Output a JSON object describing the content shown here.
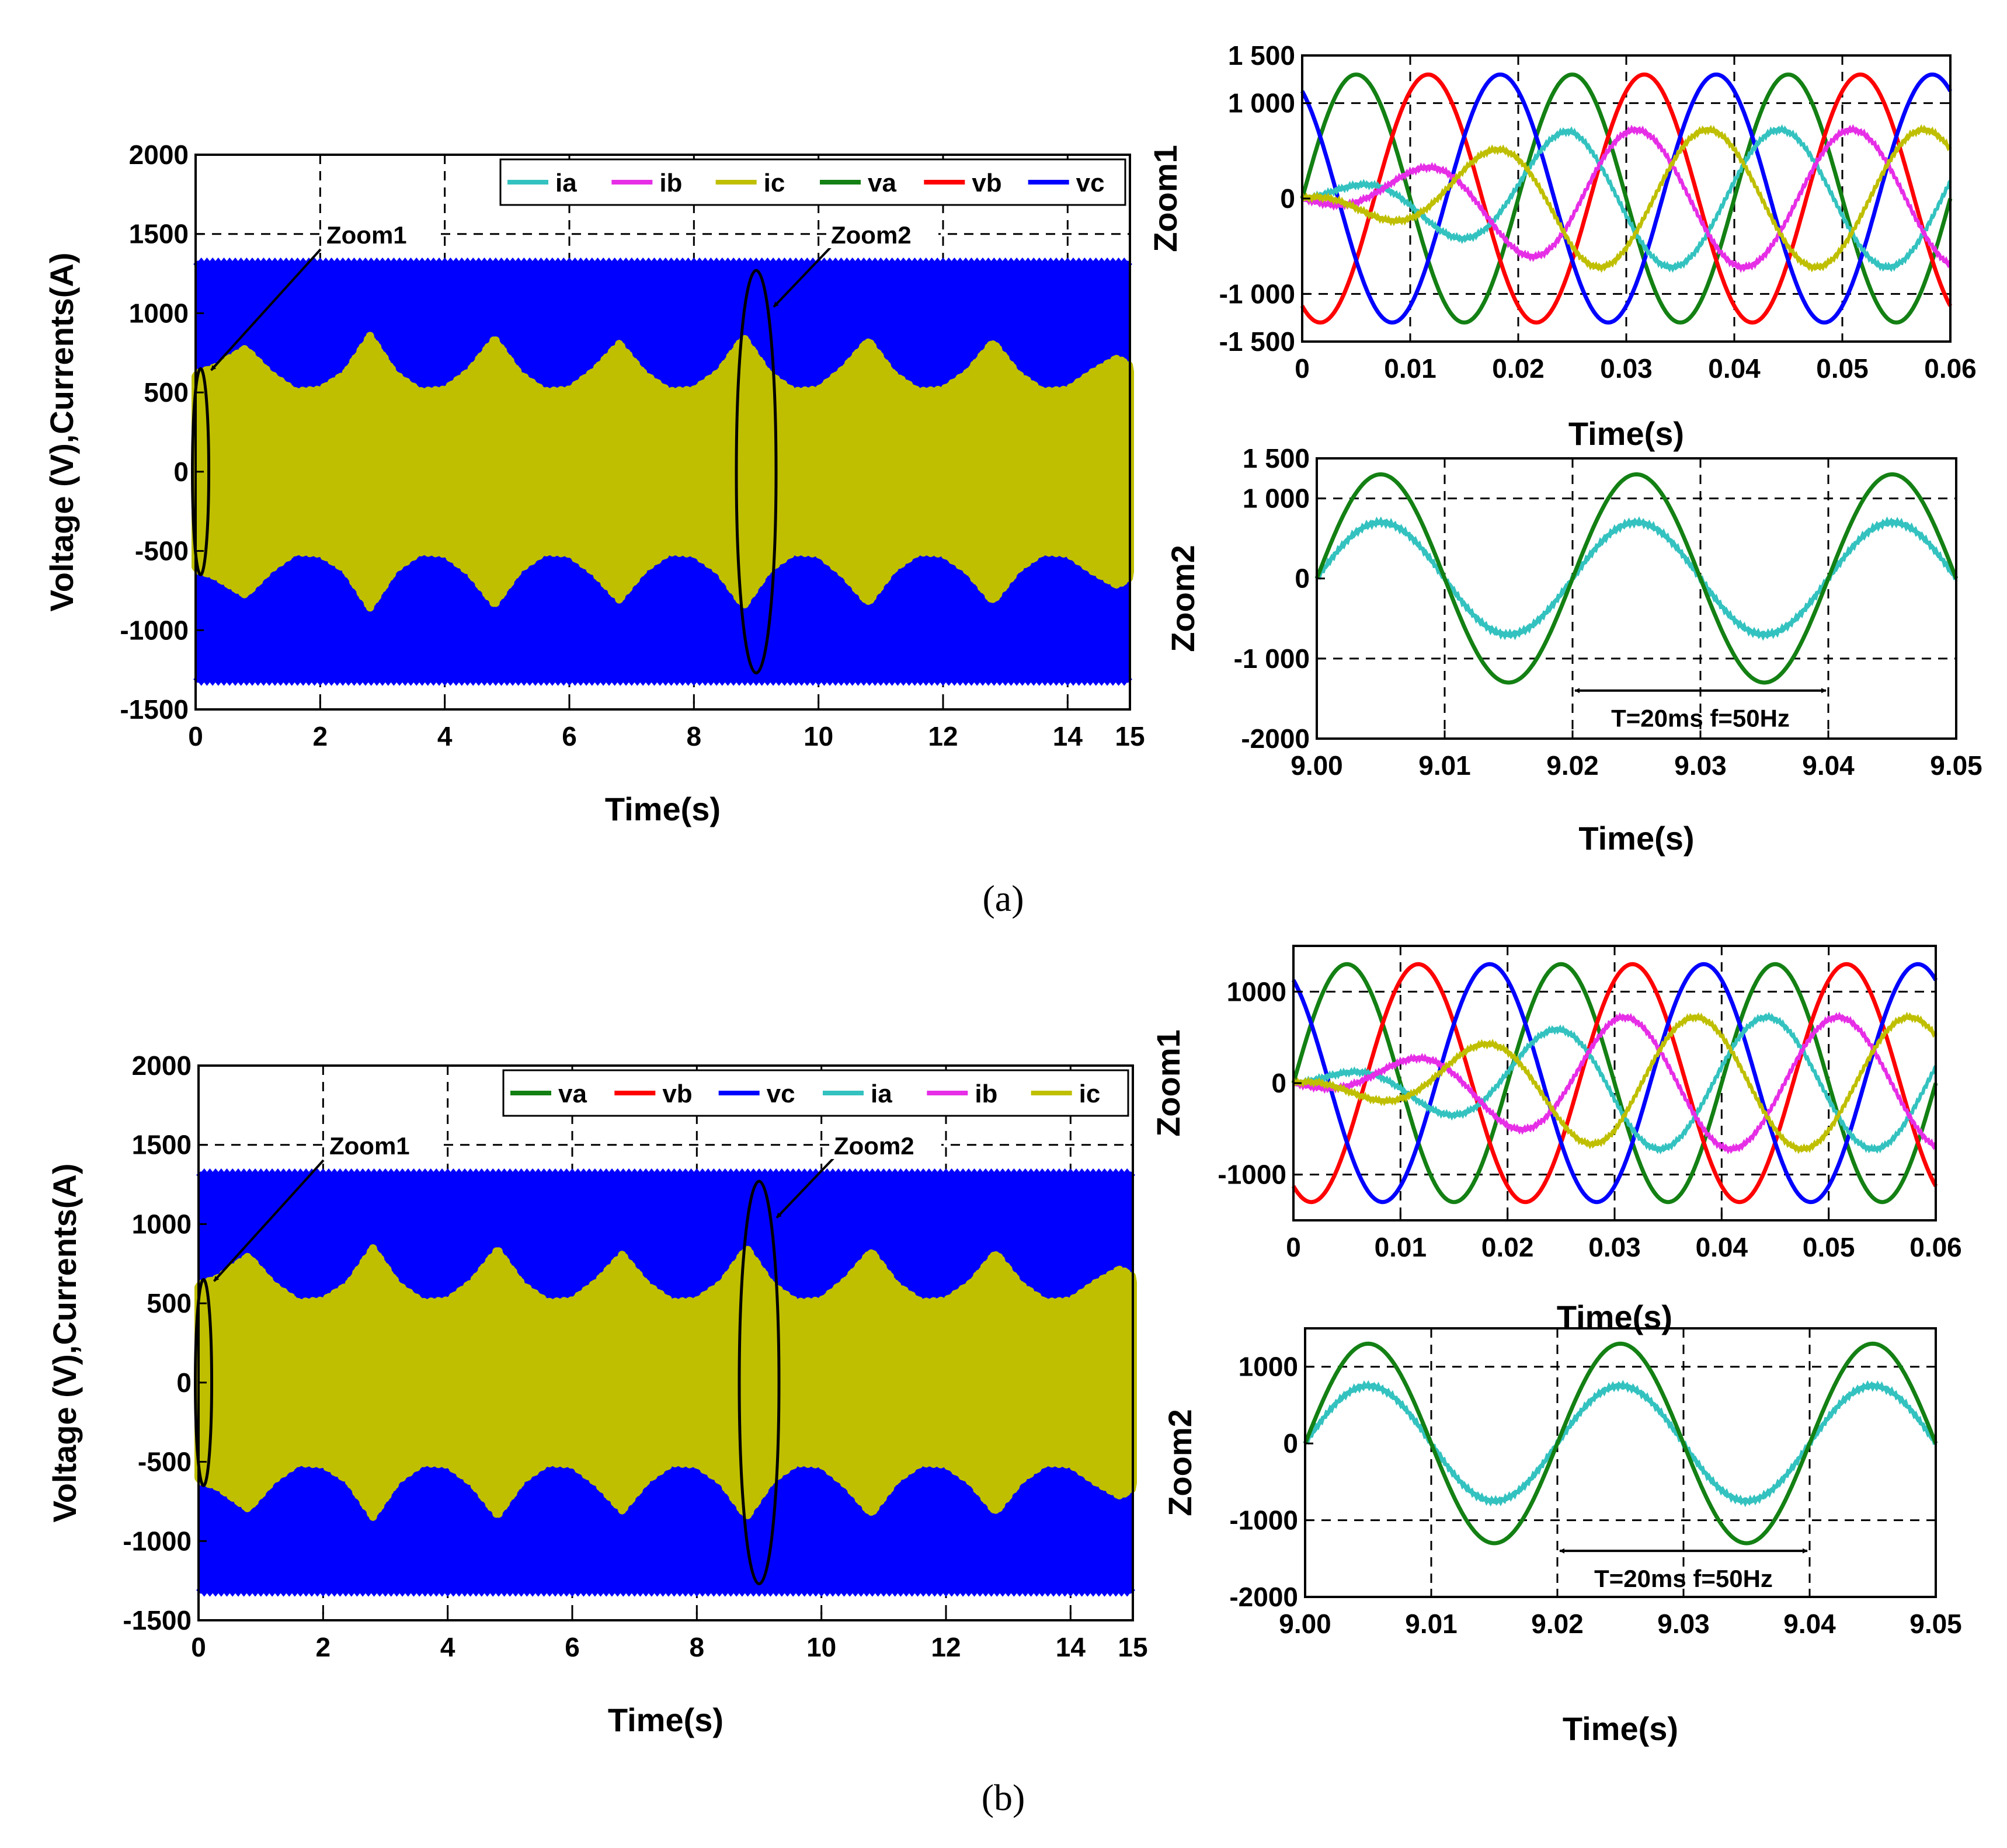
{
  "colors": {
    "va": "#138013",
    "vb": "#ff0000",
    "vc": "#0000ff",
    "ia": "#33c2bf",
    "ib": "#e62ee6",
    "ic": "#bfbf00"
  },
  "panels": [
    {
      "caption": "(a)",
      "main": {
        "chart_data": {
          "type": "line",
          "title": "",
          "xlabel": "Time(s)",
          "ylabel": "Voltage (V),Currents(A)",
          "xlim": [
            0,
            15
          ],
          "ylim": [
            -1500,
            2000
          ],
          "xticks": [
            "0",
            "2",
            "4",
            "6",
            "8",
            "10",
            "12",
            "14",
            "15"
          ],
          "yticks": [
            "2000",
            "1500",
            "1000",
            "500",
            "0",
            "-500",
            "-1000",
            "-1500"
          ],
          "legend": [
            "ia",
            "ib",
            "ic",
            "va",
            "vb",
            "vc"
          ],
          "legend_position": "top-right",
          "voltage_amplitude": 1300,
          "current_envelope": {
            "t": [
              0,
              0.3,
              0.8,
              1.2,
              1.6,
              2.0,
              2.4,
              2.8,
              3.2,
              3.6,
              4.0,
              4.4,
              4.8,
              5.2,
              5.6,
              6.0,
              6.4,
              6.8,
              7.2,
              7.6,
              8.0,
              8.4,
              8.8,
              9.2,
              9.6,
              10.0,
              10.4,
              10.8,
              11.2,
              11.6,
              12.0,
              12.4,
              12.8,
              13.2,
              13.6,
              14.0,
              14.4,
              14.8,
              15.0
            ],
            "amplitude": [
              600,
              640,
              760,
              600,
              490,
              500,
              600,
              840,
              600,
              490,
              500,
              620,
              820,
              600,
              490,
              500,
              620,
              790,
              600,
              490,
              500,
              610,
              830,
              600,
              490,
              500,
              630,
              810,
              600,
              490,
              500,
              610,
              800,
              600,
              490,
              500,
              610,
              700,
              650
            ]
          },
          "annotations": [
            "Zoom1",
            "Zoom2"
          ]
        }
      },
      "zoom1": {
        "chart_data": {
          "type": "line",
          "xlabel": "Time(s)",
          "ylabel": "Zoom1",
          "xlim": [
            0,
            0.06
          ],
          "ylim": [
            -1500,
            1500
          ],
          "xticks": [
            "0",
            "0.01",
            "0.02",
            "0.03",
            "0.04",
            "0.05",
            "0.06"
          ],
          "yticks": [
            "1 500",
            "1 000",
            "0",
            "-1 000",
            "-1 500"
          ],
          "frequency_hz": 50,
          "voltage_amplitude": 1300,
          "current_amplitude": 720,
          "current_rise_time_s": 0.025,
          "series": [
            "va",
            "vb",
            "vc",
            "ia",
            "ib",
            "ic"
          ]
        }
      },
      "zoom2": {
        "chart_data": {
          "type": "line",
          "xlabel": "Time(s)",
          "ylabel": "Zoom2",
          "xlim": [
            9.0,
            9.05
          ],
          "ylim": [
            -2000,
            1500
          ],
          "xticks": [
            "9.00",
            "9.01",
            "9.02",
            "9.03",
            "9.04",
            "9.05"
          ],
          "yticks": [
            "1 500",
            "1 000",
            "0",
            "-1 000",
            "-2000"
          ],
          "series": [
            {
              "name": "va",
              "amplitude": 1300
            },
            {
              "name": "ia",
              "amplitude": 700
            }
          ],
          "period_annotation": "T=20ms  f=50Hz",
          "period_span": [
            9.02,
            9.04
          ]
        }
      }
    },
    {
      "caption": "(b)",
      "main": {
        "chart_data": {
          "type": "line",
          "title": "",
          "xlabel": "Time(s)",
          "ylabel": "Voltage (V),Currents(A)",
          "xlim": [
            0,
            15
          ],
          "ylim": [
            -1500,
            2000
          ],
          "xticks": [
            "0",
            "2",
            "4",
            "6",
            "8",
            "10",
            "12",
            "14",
            "15"
          ],
          "yticks": [
            "2000",
            "1500",
            "1000",
            "500",
            "0",
            "-500",
            "-1000",
            "-1500"
          ],
          "legend": [
            "va",
            "vb",
            "vc",
            "ia",
            "ib",
            "ic"
          ],
          "legend_position": "top-right",
          "voltage_amplitude": 1300,
          "current_envelope": {
            "t": [
              0,
              0.3,
              0.8,
              1.2,
              1.6,
              2.0,
              2.4,
              2.8,
              3.2,
              3.6,
              4.0,
              4.4,
              4.8,
              5.2,
              5.6,
              6.0,
              6.4,
              6.8,
              7.2,
              7.6,
              8.0,
              8.4,
              8.8,
              9.2,
              9.6,
              10.0,
              10.4,
              10.8,
              11.2,
              11.6,
              12.0,
              12.4,
              12.8,
              13.2,
              13.6,
              14.0,
              14.4,
              14.8,
              15.0
            ],
            "amplitude": [
              600,
              640,
              780,
              600,
              490,
              500,
              600,
              830,
              600,
              490,
              500,
              620,
              820,
              600,
              490,
              500,
              620,
              790,
              600,
              490,
              500,
              610,
              830,
              600,
              490,
              500,
              630,
              810,
              600,
              490,
              500,
              610,
              800,
              600,
              490,
              500,
              610,
              700,
              650
            ]
          },
          "annotations": [
            "Zoom1",
            "Zoom2"
          ]
        }
      },
      "zoom1": {
        "chart_data": {
          "type": "line",
          "xlabel": "Time(s)",
          "ylabel": "Zoom1",
          "xlim": [
            0,
            0.06
          ],
          "ylim": [
            -1500,
            1500
          ],
          "xticks": [
            "0",
            "0.01",
            "0.02",
            "0.03",
            "0.04",
            "0.05",
            "0.06"
          ],
          "yticks": [
            "1000",
            "0",
            "-1000"
          ],
          "frequency_hz": 50,
          "voltage_amplitude": 1300,
          "current_amplitude": 720,
          "current_rise_time_s": 0.03,
          "series": [
            "va",
            "vb",
            "vc",
            "ia",
            "ib",
            "ic"
          ]
        }
      },
      "zoom2": {
        "chart_data": {
          "type": "line",
          "xlabel": "Time(s)",
          "ylabel": "Zoom2",
          "xlim": [
            9.0,
            9.05
          ],
          "ylim": [
            -2000,
            1500
          ],
          "xticks": [
            "9.00",
            "9.01",
            "9.02",
            "9.03",
            "9.04",
            "9.05"
          ],
          "yticks": [
            "1000",
            "0",
            "-1000",
            "-2000"
          ],
          "series": [
            {
              "name": "va",
              "amplitude": 1300
            },
            {
              "name": "ia",
              "amplitude": 750
            }
          ],
          "period_annotation": "T=20ms  f=50Hz",
          "period_span": [
            9.02,
            9.04
          ]
        }
      }
    }
  ]
}
